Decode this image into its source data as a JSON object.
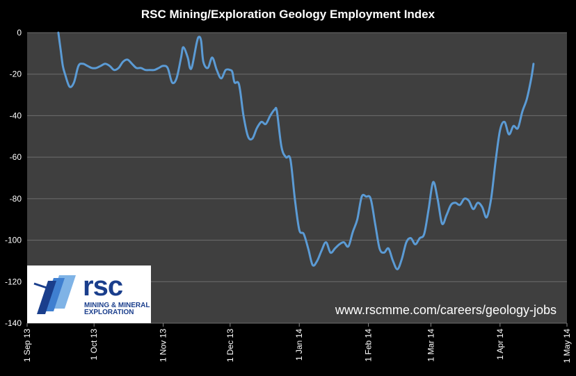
{
  "chart_data": {
    "type": "line",
    "title": "RSC Mining/Exploration Geology Employment Index",
    "xlabel": "",
    "ylabel": "",
    "ylim": [
      -140,
      0
    ],
    "yticks": [
      "0",
      "-20",
      "-40",
      "-60",
      "-80",
      "-100",
      "-120",
      "-140"
    ],
    "ytick_values": [
      0,
      -20,
      -40,
      -60,
      -80,
      -100,
      -120,
      -140
    ],
    "xlim": [
      "2013-09-01",
      "2014-05-01"
    ],
    "xticks": [
      "1 Sep 13",
      "1 Oct 13",
      "1 Nov 13",
      "1 Dec 13",
      "1 Jan 14",
      "1 Feb 14",
      "1 Mar 14",
      "1 Apr 14",
      "1 May 14"
    ],
    "xtick_dates": [
      "2013-09-01",
      "2013-10-01",
      "2013-11-01",
      "2013-12-01",
      "2014-01-01",
      "2014-02-01",
      "2014-03-01",
      "2014-04-01",
      "2014-05-01"
    ],
    "grid": "horizontal",
    "line_color": "#5b9bd5",
    "background_color": "#3f3f3f",
    "series": [
      {
        "name": "",
        "points": [
          [
            "2013-09-15",
            0
          ],
          [
            "2013-09-16",
            -8
          ],
          [
            "2013-09-17",
            -16
          ],
          [
            "2013-09-18",
            -20
          ],
          [
            "2013-09-20",
            -26
          ],
          [
            "2013-09-22",
            -24
          ],
          [
            "2013-09-24",
            -16
          ],
          [
            "2013-09-26",
            -15
          ],
          [
            "2013-09-28",
            -16
          ],
          [
            "2013-09-30",
            -17
          ],
          [
            "2013-10-02",
            -17
          ],
          [
            "2013-10-04",
            -16
          ],
          [
            "2013-10-06",
            -15
          ],
          [
            "2013-10-08",
            -16
          ],
          [
            "2013-10-10",
            -18
          ],
          [
            "2013-10-12",
            -17
          ],
          [
            "2013-10-14",
            -14
          ],
          [
            "2013-10-16",
            -13
          ],
          [
            "2013-10-18",
            -15
          ],
          [
            "2013-10-20",
            -17
          ],
          [
            "2013-10-22",
            -17
          ],
          [
            "2013-10-24",
            -18
          ],
          [
            "2013-10-26",
            -18
          ],
          [
            "2013-10-28",
            -18
          ],
          [
            "2013-10-30",
            -17
          ],
          [
            "2013-11-01",
            -16
          ],
          [
            "2013-11-03",
            -17
          ],
          [
            "2013-11-05",
            -24
          ],
          [
            "2013-11-07",
            -22
          ],
          [
            "2013-11-09",
            -12
          ],
          [
            "2013-11-10",
            -7
          ],
          [
            "2013-11-12",
            -12
          ],
          [
            "2013-11-13",
            -17
          ],
          [
            "2013-11-14",
            -16
          ],
          [
            "2013-11-16",
            -5
          ],
          [
            "2013-11-17",
            -2
          ],
          [
            "2013-11-18",
            -4
          ],
          [
            "2013-11-19",
            -14
          ],
          [
            "2013-11-21",
            -17
          ],
          [
            "2013-11-23",
            -12
          ],
          [
            "2013-11-25",
            -18
          ],
          [
            "2013-11-27",
            -22
          ],
          [
            "2013-11-29",
            -18
          ],
          [
            "2013-12-01",
            -18
          ],
          [
            "2013-12-02",
            -19
          ],
          [
            "2013-12-03",
            -24
          ],
          [
            "2013-12-05",
            -25
          ],
          [
            "2013-12-07",
            -40
          ],
          [
            "2013-12-09",
            -50
          ],
          [
            "2013-12-11",
            -51
          ],
          [
            "2013-12-13",
            -46
          ],
          [
            "2013-12-15",
            -43
          ],
          [
            "2013-12-17",
            -44
          ],
          [
            "2013-12-19",
            -40
          ],
          [
            "2013-12-21",
            -37
          ],
          [
            "2013-12-22",
            -38
          ],
          [
            "2013-12-24",
            -55
          ],
          [
            "2013-12-26",
            -60
          ],
          [
            "2013-12-28",
            -61
          ],
          [
            "2013-12-30",
            -80
          ],
          [
            "2014-01-01",
            -95
          ],
          [
            "2014-01-03",
            -97
          ],
          [
            "2014-01-05",
            -104
          ],
          [
            "2014-01-07",
            -112
          ],
          [
            "2014-01-09",
            -110
          ],
          [
            "2014-01-11",
            -105
          ],
          [
            "2014-01-13",
            -101
          ],
          [
            "2014-01-15",
            -106
          ],
          [
            "2014-01-17",
            -104
          ],
          [
            "2014-01-19",
            -102
          ],
          [
            "2014-01-21",
            -101
          ],
          [
            "2014-01-23",
            -103
          ],
          [
            "2014-01-25",
            -96
          ],
          [
            "2014-01-27",
            -90
          ],
          [
            "2014-01-29",
            -79
          ],
          [
            "2014-01-31",
            -79
          ],
          [
            "2014-02-02",
            -80
          ],
          [
            "2014-02-04",
            -92
          ],
          [
            "2014-02-06",
            -104
          ],
          [
            "2014-02-08",
            -106
          ],
          [
            "2014-02-10",
            -104
          ],
          [
            "2014-02-12",
            -110
          ],
          [
            "2014-02-14",
            -114
          ],
          [
            "2014-02-16",
            -109
          ],
          [
            "2014-02-18",
            -101
          ],
          [
            "2014-02-20",
            -99
          ],
          [
            "2014-02-22",
            -102
          ],
          [
            "2014-02-24",
            -99
          ],
          [
            "2014-02-26",
            -97
          ],
          [
            "2014-02-28",
            -85
          ],
          [
            "2014-03-02",
            -72
          ],
          [
            "2014-03-04",
            -80
          ],
          [
            "2014-03-06",
            -92
          ],
          [
            "2014-03-08",
            -88
          ],
          [
            "2014-03-10",
            -83
          ],
          [
            "2014-03-12",
            -82
          ],
          [
            "2014-03-14",
            -83
          ],
          [
            "2014-03-16",
            -80
          ],
          [
            "2014-03-18",
            -81
          ],
          [
            "2014-03-20",
            -85
          ],
          [
            "2014-03-22",
            -82
          ],
          [
            "2014-03-24",
            -84
          ],
          [
            "2014-03-26",
            -89
          ],
          [
            "2014-03-28",
            -80
          ],
          [
            "2014-03-30",
            -62
          ],
          [
            "2014-04-01",
            -47
          ],
          [
            "2014-04-03",
            -43
          ],
          [
            "2014-04-05",
            -49
          ],
          [
            "2014-04-07",
            -45
          ],
          [
            "2014-04-09",
            -46
          ],
          [
            "2014-04-11",
            -38
          ],
          [
            "2014-04-13",
            -32
          ],
          [
            "2014-04-15",
            -22
          ],
          [
            "2014-04-16",
            -15
          ]
        ]
      }
    ]
  },
  "watermark": "www.rscmme.com/careers/geology-jobs",
  "logo": {
    "name": "rsc",
    "line1": "MINING & MINERAL",
    "line2": "EXPLORATION"
  }
}
